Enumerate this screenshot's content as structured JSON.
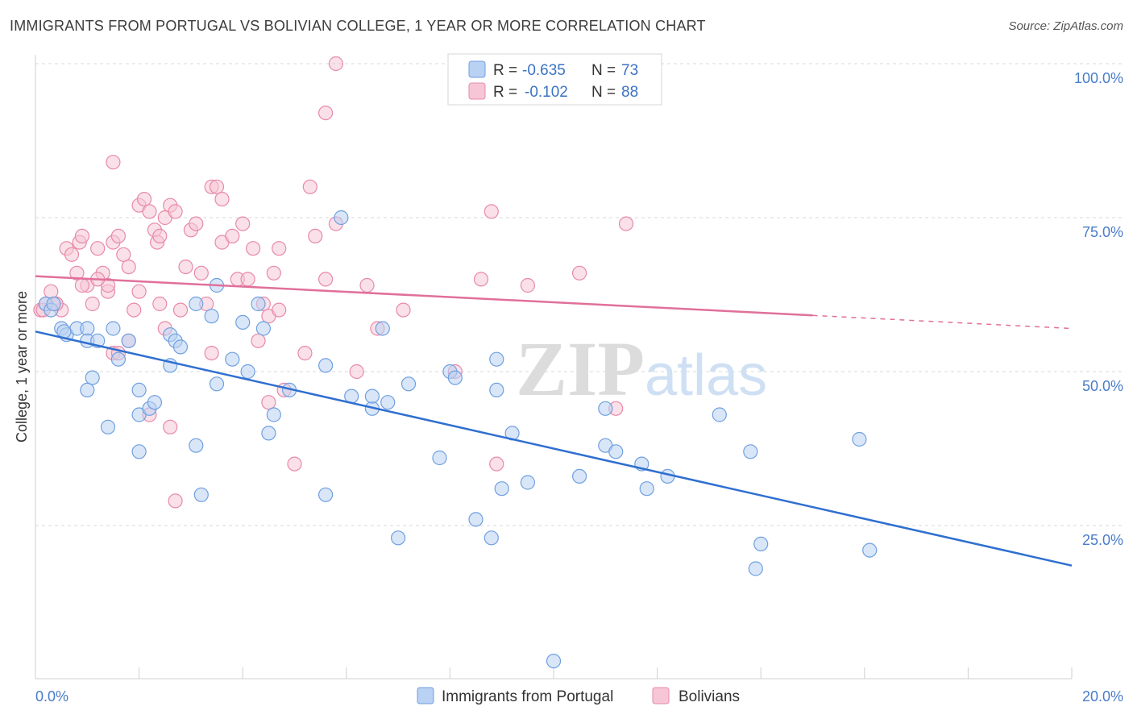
{
  "title": "IMMIGRANTS FROM PORTUGAL VS BOLIVIAN COLLEGE, 1 YEAR OR MORE CORRELATION CHART",
  "source": "Source: ZipAtlas.com",
  "watermark": {
    "zip": "ZIP",
    "atlas": "atlas"
  },
  "colors": {
    "blue": "#6fa0e0",
    "blue_fill": "#b9d1f3",
    "blue_line": "#2f6fd0",
    "pink": "#e88aa8",
    "pink_fill": "#f6c6d6",
    "pink_line": "#e0709a",
    "grid": "#d8d8d8",
    "tick_text": "#4a7cc9"
  },
  "legend": {
    "blue": {
      "r_label": "R = ",
      "r_value": "-0.635",
      "n_label": "N = ",
      "n_value": "73"
    },
    "pink": {
      "r_label": "R = ",
      "r_value": "-0.102",
      "n_label": "N = ",
      "n_value": "88"
    }
  },
  "chart_data": {
    "type": "scatter",
    "title": "IMMIGRANTS FROM PORTUGAL VS BOLIVIAN COLLEGE, 1 YEAR OR MORE CORRELATION CHART",
    "xlabel": "",
    "ylabel": "College, 1 year or more",
    "xlim": [
      0,
      20
    ],
    "ylim": [
      0,
      105
    ],
    "x_tick_labels": [
      "0.0%",
      "20.0%"
    ],
    "y_ticks": [
      25,
      50,
      75,
      100
    ],
    "y_tick_labels": [
      "25.0%",
      "50.0%",
      "75.0%",
      "100.0%"
    ],
    "grid": true,
    "legend_position": "top-center",
    "series": [
      {
        "name": "Immigrants from Portugal",
        "color": "#6fa0e0",
        "trend": {
          "x": [
            0,
            20
          ],
          "y": [
            56.5,
            18.5
          ],
          "dashed_from": null
        },
        "points": [
          [
            0.2,
            61
          ],
          [
            0.3,
            60
          ],
          [
            0.35,
            61
          ],
          [
            0.5,
            57
          ],
          [
            0.6,
            56
          ],
          [
            0.8,
            57
          ],
          [
            0.55,
            56.5
          ],
          [
            1.0,
            57
          ],
          [
            1.0,
            55
          ],
          [
            1.2,
            55
          ],
          [
            1.5,
            57
          ],
          [
            1.8,
            55
          ],
          [
            1.6,
            52
          ],
          [
            2.0,
            47
          ],
          [
            1.1,
            49
          ],
          [
            1.0,
            47
          ],
          [
            1.4,
            41
          ],
          [
            2.0,
            43
          ],
          [
            2.2,
            44
          ],
          [
            2.3,
            45
          ],
          [
            2.0,
            37
          ],
          [
            2.6,
            56
          ],
          [
            2.6,
            51
          ],
          [
            2.7,
            55
          ],
          [
            2.8,
            54
          ],
          [
            3.1,
            61
          ],
          [
            3.4,
            59
          ],
          [
            3.5,
            64
          ],
          [
            3.8,
            52
          ],
          [
            3.5,
            48
          ],
          [
            4.1,
            50
          ],
          [
            4.0,
            58
          ],
          [
            4.3,
            61
          ],
          [
            4.4,
            57
          ],
          [
            4.6,
            43
          ],
          [
            4.9,
            47
          ],
          [
            4.5,
            40
          ],
          [
            3.1,
            38
          ],
          [
            3.2,
            30
          ],
          [
            5.6,
            51
          ],
          [
            6.1,
            46
          ],
          [
            6.5,
            44
          ],
          [
            6.5,
            46
          ],
          [
            6.7,
            57
          ],
          [
            6.8,
            45
          ],
          [
            7.2,
            48
          ],
          [
            7.8,
            36
          ],
          [
            5.9,
            75
          ],
          [
            5.6,
            30
          ],
          [
            8.0,
            50
          ],
          [
            8.1,
            49
          ],
          [
            8.9,
            47
          ],
          [
            8.9,
            52
          ],
          [
            9.2,
            40
          ],
          [
            7.0,
            23
          ],
          [
            8.5,
            26
          ],
          [
            8.8,
            23
          ],
          [
            9.0,
            31
          ],
          [
            9.5,
            32
          ],
          [
            10.5,
            33
          ],
          [
            11.0,
            44
          ],
          [
            11.0,
            38
          ],
          [
            11.2,
            37
          ],
          [
            11.7,
            35
          ],
          [
            11.8,
            31
          ],
          [
            12.2,
            33
          ],
          [
            13.2,
            43
          ],
          [
            13.8,
            37
          ],
          [
            13.9,
            18
          ],
          [
            14.0,
            22
          ],
          [
            15.9,
            39
          ],
          [
            16.1,
            21
          ],
          [
            10.0,
            3
          ]
        ]
      },
      {
        "name": "Bolivians",
        "color": "#e88aa8",
        "trend": {
          "x": [
            0,
            20
          ],
          "y": [
            65.5,
            57
          ],
          "dashed_from": 15
        },
        "points": [
          [
            0.1,
            60
          ],
          [
            0.15,
            60
          ],
          [
            0.2,
            61
          ],
          [
            0.3,
            63
          ],
          [
            0.4,
            61
          ],
          [
            0.5,
            60
          ],
          [
            0.6,
            70
          ],
          [
            0.7,
            69
          ],
          [
            0.8,
            66
          ],
          [
            0.85,
            71
          ],
          [
            0.9,
            72
          ],
          [
            1.0,
            64
          ],
          [
            1.1,
            61
          ],
          [
            1.2,
            70
          ],
          [
            1.3,
            66
          ],
          [
            1.4,
            63
          ],
          [
            1.5,
            71
          ],
          [
            1.6,
            72
          ],
          [
            1.7,
            69
          ],
          [
            1.8,
            67
          ],
          [
            1.9,
            60
          ],
          [
            2.0,
            77
          ],
          [
            2.1,
            78
          ],
          [
            2.2,
            76
          ],
          [
            2.3,
            73
          ],
          [
            2.35,
            71
          ],
          [
            2.4,
            72
          ],
          [
            2.5,
            75
          ],
          [
            2.6,
            77
          ],
          [
            2.7,
            76
          ],
          [
            2.8,
            60
          ],
          [
            2.9,
            67
          ],
          [
            3.0,
            73
          ],
          [
            3.1,
            74
          ],
          [
            3.2,
            66
          ],
          [
            3.3,
            61
          ],
          [
            3.4,
            80
          ],
          [
            3.5,
            80
          ],
          [
            3.6,
            78
          ],
          [
            3.6,
            71
          ],
          [
            3.8,
            72
          ],
          [
            3.9,
            65
          ],
          [
            4.0,
            74
          ],
          [
            4.1,
            65
          ],
          [
            4.2,
            70
          ],
          [
            4.4,
            61
          ],
          [
            4.5,
            59
          ],
          [
            4.6,
            66
          ],
          [
            4.7,
            70
          ],
          [
            4.8,
            47
          ],
          [
            5.0,
            35
          ],
          [
            5.2,
            53
          ],
          [
            5.3,
            80
          ],
          [
            5.4,
            72
          ],
          [
            5.6,
            65
          ],
          [
            5.8,
            74
          ],
          [
            6.2,
            50
          ],
          [
            6.4,
            64
          ],
          [
            6.6,
            57
          ],
          [
            7.1,
            60
          ],
          [
            8.1,
            50
          ],
          [
            8.6,
            65
          ],
          [
            8.8,
            76
          ],
          [
            8.9,
            35
          ],
          [
            9.5,
            64
          ],
          [
            10.5,
            66
          ],
          [
            11.4,
            74
          ],
          [
            11.2,
            44
          ],
          [
            1.5,
            53
          ],
          [
            1.6,
            53
          ],
          [
            1.8,
            55
          ],
          [
            2.2,
            43
          ],
          [
            2.4,
            61
          ],
          [
            2.5,
            57
          ],
          [
            2.6,
            41
          ],
          [
            2.7,
            29
          ],
          [
            3.4,
            53
          ],
          [
            4.3,
            55
          ],
          [
            4.5,
            45
          ],
          [
            4.7,
            60
          ],
          [
            5.8,
            100
          ],
          [
            5.6,
            92
          ],
          [
            1.5,
            84
          ],
          [
            1.4,
            64
          ],
          [
            0.9,
            64
          ],
          [
            0.4,
            61
          ],
          [
            2.0,
            63
          ],
          [
            1.2,
            65
          ]
        ]
      }
    ]
  },
  "bottom_legend": {
    "blue_label": "Immigrants from Portugal",
    "pink_label": "Bolivians"
  }
}
